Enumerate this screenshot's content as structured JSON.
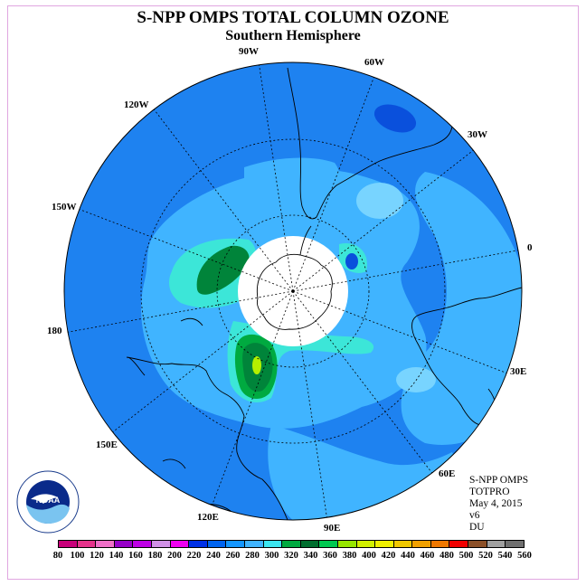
{
  "title": "S-NPP OMPS TOTAL COLUMN OZONE",
  "subtitle": "Southern Hemisphere",
  "longitude_labels": [
    "90W",
    "60W",
    "120W",
    "30W",
    "150W",
    "0",
    "180",
    "30E",
    "150E",
    "60E",
    "120E",
    "90E"
  ],
  "info": {
    "instrument": "S-NPP OMPS",
    "product": "TOTPRO",
    "date": "May 4, 2015",
    "version": "v6",
    "units": "DU"
  },
  "logo": {
    "name": "NOAA",
    "ring_text": "NATIONAL OCEANIC AND ATMOSPHERIC ADMINISTRATION",
    "bottom_text": "U.S. DEPARTMENT OF COMMERCE"
  },
  "colorbar": {
    "labels": [
      "80",
      "100",
      "120",
      "140",
      "160",
      "180",
      "200",
      "220",
      "240",
      "260",
      "280",
      "300",
      "320",
      "340",
      "360",
      "380",
      "400",
      "420",
      "440",
      "460",
      "480",
      "500",
      "520",
      "540",
      "560"
    ],
    "colors": [
      "#c8007a",
      "#e6338c",
      "#f070c8",
      "#9600c8",
      "#be00e6",
      "#d090e6",
      "#f000f0",
      "#0030e6",
      "#0064f0",
      "#1496ff",
      "#40b4ff",
      "#3ce6f0",
      "#00aa40",
      "#006e2e",
      "#00c850",
      "#96e600",
      "#d2f000",
      "#f0f000",
      "#f0c800",
      "#f0a000",
      "#f07800",
      "#f00000",
      "#8c5028",
      "#a0a0a0",
      "#707070"
    ]
  },
  "ozone_legend_colors": {
    "background": "#1e82f0",
    "deep_blue": "#0a50dc",
    "light_blue": "#40b4ff",
    "cyan_light": "#78d4ff",
    "teal": "#3ce6d8",
    "dark_green": "#00843a",
    "light_green": "#00aa40",
    "yellow_green": "#b4f000",
    "missing": "#ffffff"
  }
}
